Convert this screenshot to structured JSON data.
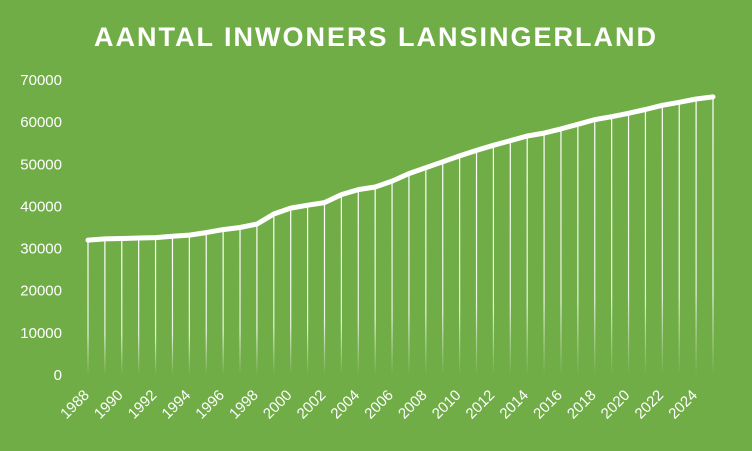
{
  "chart_data": {
    "type": "line",
    "title": "AANTAL INWONERS LANSINGERLAND",
    "xlabel": "",
    "ylabel": "",
    "ylim": [
      0,
      70000
    ],
    "yticks": [
      0,
      10000,
      20000,
      30000,
      40000,
      50000,
      60000,
      70000
    ],
    "xtick_labels": [
      "1988",
      "1990",
      "1992",
      "1994",
      "1996",
      "1998",
      "2000",
      "2002",
      "2004",
      "2006",
      "2008",
      "2010",
      "2012",
      "2014",
      "2016",
      "2018",
      "2020",
      "2022",
      "2024"
    ],
    "x": [
      1988,
      1989,
      1990,
      1991,
      1992,
      1993,
      1994,
      1995,
      1996,
      1997,
      1998,
      1999,
      2000,
      2001,
      2002,
      2003,
      2004,
      2005,
      2006,
      2007,
      2008,
      2009,
      2010,
      2011,
      2012,
      2013,
      2014,
      2015,
      2016,
      2017,
      2018,
      2019,
      2020,
      2021,
      2022,
      2023,
      2024,
      2025
    ],
    "values": [
      32000,
      32300,
      32400,
      32500,
      32600,
      32900,
      33200,
      33800,
      34500,
      35000,
      35800,
      38200,
      39600,
      40300,
      40900,
      42800,
      44000,
      44600,
      46000,
      47800,
      49200,
      50600,
      52000,
      53300,
      54500,
      55600,
      56700,
      57400,
      58400,
      59500,
      60600,
      61300,
      62100,
      63000,
      64000,
      64700,
      65500,
      66000
    ],
    "colors": {
      "background": "#70ad47",
      "line": "#ffffff",
      "drop_lines": "#ffffff",
      "text": "#ffffff"
    },
    "drop_lines": true,
    "grid": false,
    "legend": "none"
  }
}
